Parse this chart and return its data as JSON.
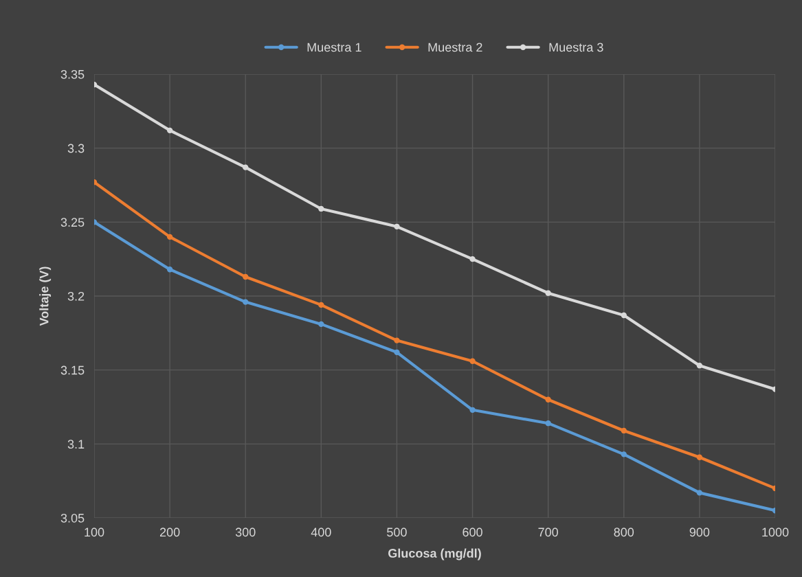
{
  "chart_data": {
    "type": "line",
    "xlabel": "Glucosa (mg/dl)",
    "ylabel": "Voltaje (V)",
    "x": [
      100,
      200,
      300,
      400,
      500,
      600,
      700,
      800,
      900,
      1000
    ],
    "series": [
      {
        "name": "Muestra 1",
        "color": "#5b9bd5",
        "values": [
          3.25,
          3.218,
          3.196,
          3.181,
          3.162,
          3.123,
          3.114,
          3.093,
          3.067,
          3.055
        ]
      },
      {
        "name": "Muestra 2",
        "color": "#ed7d31",
        "values": [
          3.277,
          3.24,
          3.213,
          3.194,
          3.17,
          3.156,
          3.13,
          3.109,
          3.091,
          3.07
        ]
      },
      {
        "name": "Muestra 3",
        "color": "#d9d9d9",
        "values": [
          3.343,
          3.312,
          3.287,
          3.259,
          3.247,
          3.225,
          3.202,
          3.187,
          3.153,
          3.137
        ]
      }
    ],
    "xlim": [
      100,
      1000
    ],
    "xticks": [
      100,
      200,
      300,
      400,
      500,
      600,
      700,
      800,
      900,
      1000
    ],
    "ylim": [
      3.05,
      3.35
    ],
    "yticks": [
      {
        "value": 3.05,
        "label": "3.05"
      },
      {
        "value": 3.1,
        "label": "3.1"
      },
      {
        "value": 3.15,
        "label": "3.15"
      },
      {
        "value": 3.2,
        "label": "3.2"
      },
      {
        "value": 3.25,
        "label": "3.25"
      },
      {
        "value": 3.3,
        "label": "3.3"
      },
      {
        "value": 3.35,
        "label": "3.35"
      }
    ],
    "grid": true,
    "legend": "top",
    "marker": "circle",
    "line_style": "solid"
  }
}
